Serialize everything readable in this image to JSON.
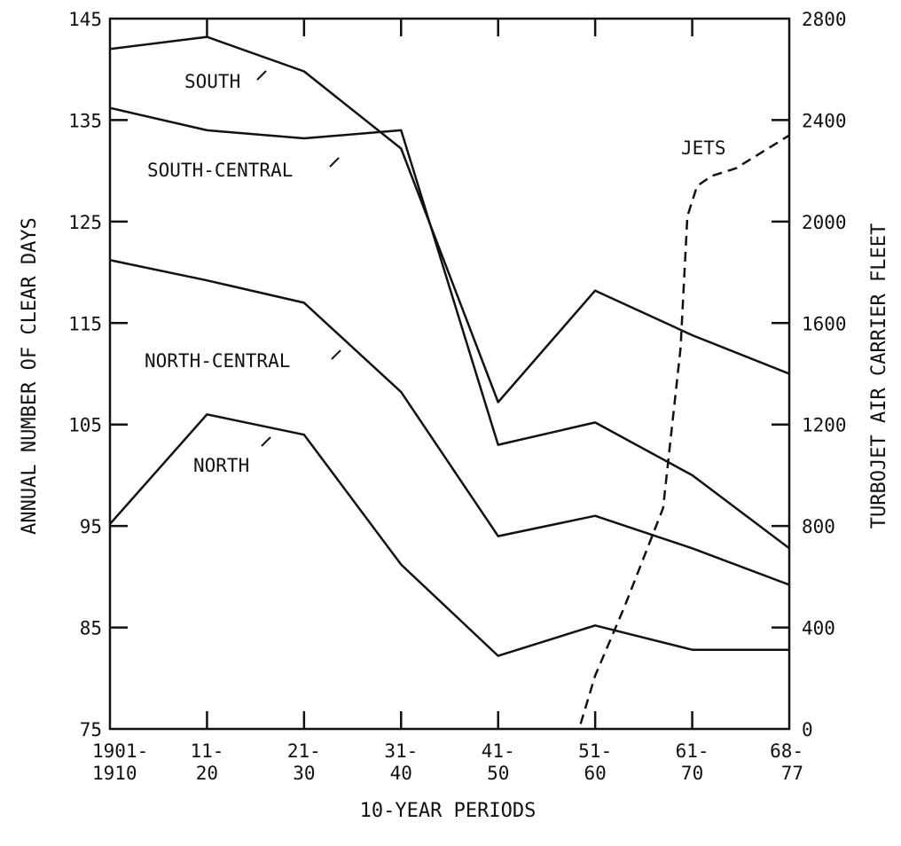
{
  "chart_data": {
    "type": "line",
    "title": "",
    "xlabel": "10-YEAR PERIODS",
    "ylabel_left": "ANNUAL NUMBER OF CLEAR DAYS",
    "ylabel_right": "TURBOJET AIR CARRIER FLEET",
    "categories": [
      [
        "1901-",
        "1910"
      ],
      [
        "11-",
        "20"
      ],
      [
        "21-",
        "30"
      ],
      [
        "31-",
        "40"
      ],
      [
        "41-",
        "50"
      ],
      [
        "51-",
        "60"
      ],
      [
        "61-",
        "70"
      ],
      [
        "68-",
        "77"
      ]
    ],
    "ylim_left": [
      75,
      145
    ],
    "yticks_left": [
      75,
      85,
      95,
      105,
      115,
      125,
      135,
      145
    ],
    "ylim_right": [
      0,
      2800
    ],
    "yticks_right": [
      0,
      400,
      800,
      1200,
      1600,
      2000,
      2400,
      2800
    ],
    "grid": false,
    "series": [
      {
        "name": "SOUTH",
        "axis": "left",
        "style": "solid",
        "values": [
          142,
          143.2,
          139.8,
          132.2,
          107.2,
          118.2,
          113.8,
          110
        ]
      },
      {
        "name": "SOUTH-CENTRAL",
        "axis": "left",
        "style": "solid",
        "values": [
          136.2,
          134,
          133.2,
          134,
          103,
          105.2,
          100,
          92.8
        ]
      },
      {
        "name": "NORTH-CENTRAL",
        "axis": "left",
        "style": "solid",
        "values": [
          121.2,
          119.2,
          117,
          108.2,
          94,
          96,
          92.8,
          89.2
        ]
      },
      {
        "name": "NORTH",
        "axis": "left",
        "style": "solid",
        "values": [
          95.2,
          106,
          104,
          91.2,
          82.2,
          85.2,
          82.8,
          82.8
        ]
      },
      {
        "name": "JETS",
        "axis": "right",
        "style": "dashed",
        "points": [
          [
            4.85,
            20
          ],
          [
            5.0,
            210
          ],
          [
            5.3,
            480
          ],
          [
            5.7,
            870
          ],
          [
            5.88,
            1500
          ],
          [
            5.95,
            2020
          ],
          [
            6.05,
            2140
          ],
          [
            6.2,
            2180
          ],
          [
            6.45,
            2210
          ],
          [
            7.0,
            2340
          ]
        ]
      }
    ]
  }
}
